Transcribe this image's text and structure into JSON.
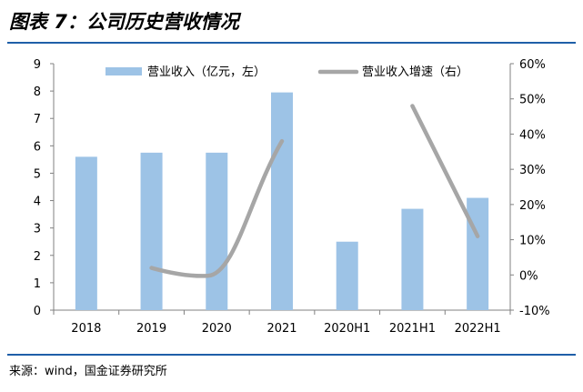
{
  "header": {
    "title": "图表 7：公司历史营收情况"
  },
  "footer": {
    "source": "来源：wind，国金证券研究所"
  },
  "colors": {
    "bar": "#9dc3e6",
    "line": "#a6a6a6",
    "rule": "#1f5fa8"
  },
  "chart_data": {
    "type": "bar+line",
    "categories": [
      "2018",
      "2019",
      "2020",
      "2021",
      "2020H1",
      "2021H1",
      "2022H1"
    ],
    "series": [
      {
        "name": "营业收入（亿元，左）",
        "type": "bar",
        "axis": "left",
        "values": [
          5.6,
          5.75,
          5.75,
          7.95,
          2.5,
          3.7,
          4.1
        ]
      },
      {
        "name": "营业收入增速（右）",
        "type": "line",
        "axis": "right",
        "segments": [
          {
            "categories": [
              "2019",
              "2020",
              "2021"
            ],
            "values": [
              0.02,
              0.0,
              0.38
            ]
          },
          {
            "categories": [
              "2021H1",
              "2022H1"
            ],
            "values": [
              0.48,
              0.11
            ]
          }
        ]
      }
    ],
    "y_left": {
      "min": 0,
      "max": 9,
      "ticks": [
        "0",
        "1",
        "2",
        "3",
        "4",
        "5",
        "6",
        "7",
        "8",
        "9"
      ]
    },
    "y_right": {
      "min": -0.1,
      "max": 0.6,
      "ticks": [
        "-10%",
        "0%",
        "10%",
        "20%",
        "30%",
        "40%",
        "50%",
        "60%"
      ]
    },
    "grid": false,
    "legend": "top"
  }
}
